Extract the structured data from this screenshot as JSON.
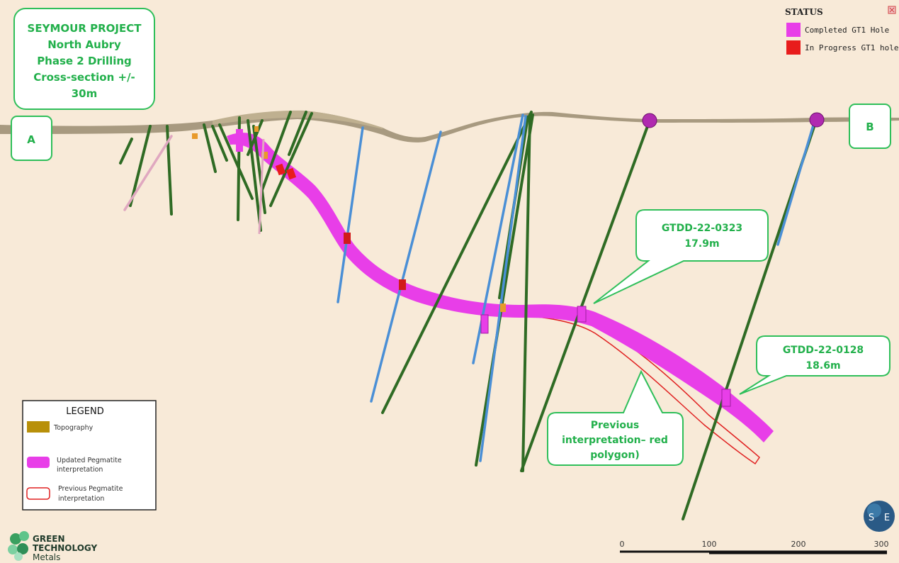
{
  "title_box": {
    "lines": [
      "SEYMOUR PROJECT",
      "North Aubry",
      "Phase 2 Drilling",
      "Cross-section +/-",
      "30m"
    ]
  },
  "section_markers": {
    "start": "A",
    "end": "B"
  },
  "status": {
    "heading": "STATUS",
    "items": [
      {
        "label": "Completed GT1 Hole",
        "color": "#e83ee8"
      },
      {
        "label": "In Progress GT1 hole",
        "color": "#e81c1c"
      }
    ]
  },
  "callouts": [
    {
      "id": "gtdd-22-0323",
      "lines": [
        "GTDD-22-0323",
        "17.9m"
      ]
    },
    {
      "id": "gtdd-22-0128",
      "lines": [
        "GTDD-22-0128",
        "18.6m"
      ]
    },
    {
      "id": "previous",
      "lines": [
        "Previous",
        "interpretation– red",
        "polygon)"
      ]
    }
  ],
  "legend": {
    "title": "LEGEND",
    "items": [
      {
        "label_lines": [
          "Topography"
        ],
        "color": "#b8900a",
        "kind": "fill"
      },
      {
        "label_lines": [
          "Updated Pegmatite",
          "interpretation"
        ],
        "color": "#e83ee8",
        "kind": "fill"
      },
      {
        "label_lines": [
          "Previous Pegmatite",
          "interpretation"
        ],
        "color": "#e02020",
        "kind": "outline"
      }
    ]
  },
  "scale_bar": {
    "ticks": [
      "0",
      "100",
      "200",
      "300"
    ]
  },
  "logo": {
    "lines": [
      "GREEN",
      "TECHNOLOGY",
      "Metals"
    ]
  },
  "compass": {
    "left": "S",
    "right": "E"
  },
  "colors": {
    "background": "#f8ead8",
    "callout_text": "#22b04b",
    "callout_border": "#2fbf5a",
    "pegmatite": "#e83ee8",
    "in_progress": "#e81c1c",
    "drill_green": "#2f6b24",
    "drill_blue": "#4a8fd6",
    "topography": "#a89a80"
  }
}
